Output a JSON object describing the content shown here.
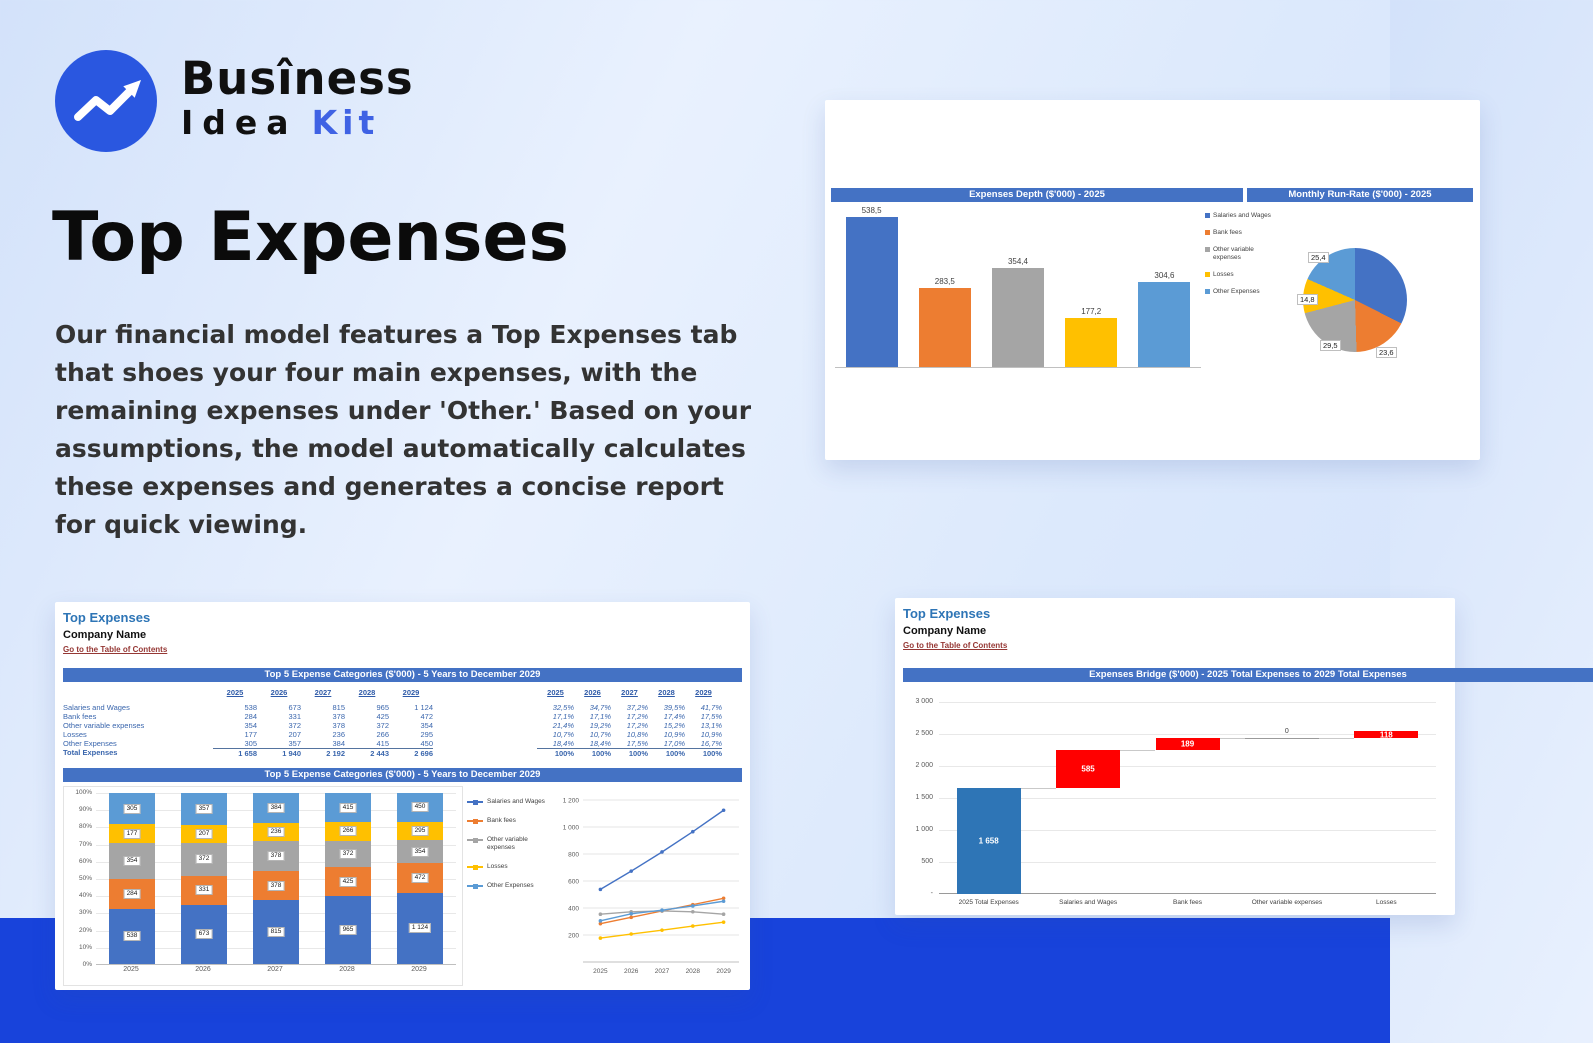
{
  "brand": {
    "line1": "Busîness",
    "line2_black": "Idea",
    "line2_blue": "Kit"
  },
  "hero": {
    "title": "Top Expenses",
    "paragraph": "Our financial model features a Top Expenses tab that shoes your four main expenses, with the remaining expenses under 'Other.' Based on your assumptions, the model automatically calculates these expenses and generates a concise report for quick viewing."
  },
  "colors": {
    "band_blue": "#1843DB",
    "logo_blue": "#2A57E0",
    "kit_blue": "#3F62E4",
    "excel_header_blue": "#4472C4",
    "link_red": "#953734",
    "sheet_title_blue": "#2E75B6",
    "waterfall_start_blue": "#2E75B6",
    "waterfall_increase_red": "#FF0000",
    "series_colors": [
      "#4472C4",
      "#ED7D31",
      "#A5A5A5",
      "#FFC000",
      "#5B9BD5"
    ]
  },
  "sheet1": {
    "title": "Top Expenses",
    "company": "Company Name",
    "link": "Go to the Table of Contents",
    "table_header": "Top 5 Expense Categories ($'000) - 5 Years to December 2029",
    "chart_header": "Top 5 Expense Categories ($'000) - 5 Years to December 2029",
    "years": [
      "2025",
      "2026",
      "2027",
      "2028",
      "2029"
    ],
    "rows": [
      {
        "label": "Salaries and Wages",
        "values": [
          "538",
          "673",
          "815",
          "965",
          "1 124"
        ],
        "pcts": [
          "32,5%",
          "34,7%",
          "37,2%",
          "39,5%",
          "41,7%"
        ]
      },
      {
        "label": "Bank fees",
        "values": [
          "284",
          "331",
          "378",
          "425",
          "472"
        ],
        "pcts": [
          "17,1%",
          "17,1%",
          "17,2%",
          "17,4%",
          "17,5%"
        ]
      },
      {
        "label": "Other variable expenses",
        "values": [
          "354",
          "372",
          "378",
          "372",
          "354"
        ],
        "pcts": [
          "21,4%",
          "19,2%",
          "17,2%",
          "15,2%",
          "13,1%"
        ]
      },
      {
        "label": "Losses",
        "values": [
          "177",
          "207",
          "236",
          "266",
          "295"
        ],
        "pcts": [
          "10,7%",
          "10,7%",
          "10,8%",
          "10,9%",
          "10,9%"
        ]
      },
      {
        "label": "Other Expenses",
        "values": [
          "305",
          "357",
          "384",
          "415",
          "450"
        ],
        "pcts": [
          "18,4%",
          "18,4%",
          "17,5%",
          "17,0%",
          "16,7%"
        ]
      }
    ],
    "total": {
      "label": "Total Expenses",
      "values": [
        "1 658",
        "1 940",
        "2 192",
        "2 443",
        "2 696"
      ],
      "pcts": [
        "100%",
        "100%",
        "100%",
        "100%",
        "100%"
      ]
    }
  },
  "sheet2": {
    "title": "Top Expenses",
    "company": "Company Name",
    "link": "Go to the Table of Contents"
  },
  "chart_data": [
    {
      "id": "expenses-depth",
      "type": "bar",
      "title": "Expenses Depth ($'000) - 2025",
      "categories": [
        "Salaries and Wages",
        "Bank fees",
        "Other variable expenses",
        "Losses",
        "Other Expenses"
      ],
      "values": [
        538.5,
        283.5,
        354.4,
        177.2,
        304.6
      ],
      "labels": [
        "538,5",
        "283,5",
        "354,4",
        "177,2",
        "304,6"
      ],
      "ymax": 600,
      "legend_position": "right"
    },
    {
      "id": "monthly-run-rate",
      "type": "pie",
      "title": "Monthly Run-Rate ($'000) - 2025",
      "categories": [
        "Salaries and Wages",
        "Bank fees",
        "Other variable expenses",
        "Losses",
        "Other Expenses"
      ],
      "values": [
        44.8,
        23.6,
        29.5,
        14.8,
        25.4
      ],
      "visible_labels": [
        "25,4",
        "14,8",
        "29,5",
        "23,6"
      ]
    },
    {
      "id": "top5-stacked",
      "type": "bar",
      "title": "Top 5 Expense Categories ($'000) - 5 Years to December 2029",
      "stacked": true,
      "categories": [
        "2025",
        "2026",
        "2027",
        "2028",
        "2029"
      ],
      "series": [
        {
          "name": "Salaries and Wages",
          "color": "#4472C4",
          "values": [
            538,
            673,
            815,
            965,
            1124
          ],
          "labels": [
            "538",
            "673",
            "815",
            "965",
            "1 124"
          ]
        },
        {
          "name": "Bank fees",
          "color": "#ED7D31",
          "values": [
            284,
            331,
            378,
            425,
            472
          ],
          "labels": [
            "284",
            "331",
            "378",
            "425",
            "472"
          ]
        },
        {
          "name": "Other variable expenses",
          "color": "#A5A5A5",
          "values": [
            354,
            372,
            378,
            372,
            354
          ],
          "labels": [
            "354",
            "372",
            "378",
            "372",
            "354"
          ]
        },
        {
          "name": "Losses",
          "color": "#FFC000",
          "values": [
            177,
            207,
            236,
            266,
            295
          ],
          "labels": [
            "177",
            "207",
            "236",
            "266",
            "295"
          ]
        },
        {
          "name": "Other Expenses",
          "color": "#5B9BD5",
          "values": [
            305,
            357,
            384,
            415,
            450
          ],
          "labels": [
            "305",
            "357",
            "384",
            "415",
            "450"
          ]
        }
      ],
      "y_ticks": [
        "100%",
        "90%",
        "80%",
        "70%",
        "60%",
        "50%",
        "40%",
        "30%",
        "20%",
        "10%",
        "0%"
      ]
    },
    {
      "id": "top5-lines",
      "type": "line",
      "categories": [
        "2025",
        "2026",
        "2027",
        "2028",
        "2029"
      ],
      "ymax": 1200,
      "tick_values": [
        1200,
        1000,
        800,
        600,
        400,
        200
      ],
      "y_ticks": [
        "1 200",
        "1 000",
        "800",
        "600",
        "400",
        "200"
      ]
    },
    {
      "id": "expenses-bridge",
      "type": "waterfall",
      "title": "Expenses Bridge ($'000) - 2025 Total Expenses to 2029 Total Expenses",
      "categories": [
        "2025 Total Expenses",
        "Salaries and Wages",
        "Bank fees",
        "Other variable expenses",
        "Losses"
      ],
      "bars": [
        {
          "category": "2025 Total Expenses",
          "from": 0,
          "to": 1658,
          "label": "1 658",
          "color": "#2E75B6",
          "label_color": "#ffffff"
        },
        {
          "category": "Salaries and Wages",
          "from": 1658,
          "to": 2243,
          "label": "585",
          "color": "#FF0000",
          "label_color": "#ffffff"
        },
        {
          "category": "Bank fees",
          "from": 2243,
          "to": 2432,
          "label": "189",
          "color": "#FF0000",
          "label_color": "#ffffff"
        },
        {
          "category": "Other variable expenses",
          "from": 2432,
          "to": 2432,
          "label": "0",
          "color": "#FF0000",
          "label_color": "#404040"
        },
        {
          "category": "Losses",
          "from": 2432,
          "to": 2550,
          "label": "118",
          "color": "#FF0000",
          "label_color": "#ffffff"
        }
      ],
      "ymax": 3000,
      "tick_values": [
        3000,
        2500,
        2000,
        1500,
        1000,
        500,
        0
      ],
      "y_ticks": [
        "3 000",
        "2 500",
        "2 000",
        "1 500",
        "1 000",
        "500",
        "-"
      ]
    }
  ]
}
